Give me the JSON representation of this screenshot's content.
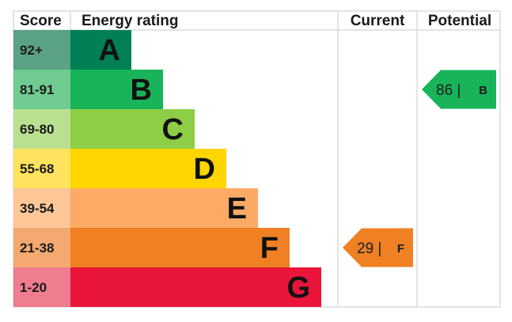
{
  "chart_data": {
    "type": "energy-rating",
    "headers": {
      "score": "Score",
      "rating": "Energy rating",
      "current": "Current",
      "potential": "Potential"
    },
    "bands": [
      {
        "range": "92+",
        "letter": "A",
        "color": "#008054",
        "score_bg": "#5aa283"
      },
      {
        "range": "81-91",
        "letter": "B",
        "color": "#19b459",
        "score_bg": "#6fcb91"
      },
      {
        "range": "69-80",
        "letter": "C",
        "color": "#8dce46",
        "score_bg": "#b9e08f"
      },
      {
        "range": "55-68",
        "letter": "D",
        "color": "#ffd500",
        "score_bg": "#ffe35e"
      },
      {
        "range": "39-54",
        "letter": "E",
        "color": "#fcaa65",
        "score_bg": "#fdc798"
      },
      {
        "range": "21-38",
        "letter": "F",
        "color": "#ef8023",
        "score_bg": "#f4a971"
      },
      {
        "range": "1-20",
        "letter": "G",
        "color": "#e9153b",
        "score_bg": "#f07c8f"
      }
    ],
    "current": {
      "value": 29,
      "letter": "F",
      "sep": "|",
      "color": "#ef8023"
    },
    "potential": {
      "value": 86,
      "letter": "B",
      "sep": "|",
      "color": "#19b459"
    }
  }
}
